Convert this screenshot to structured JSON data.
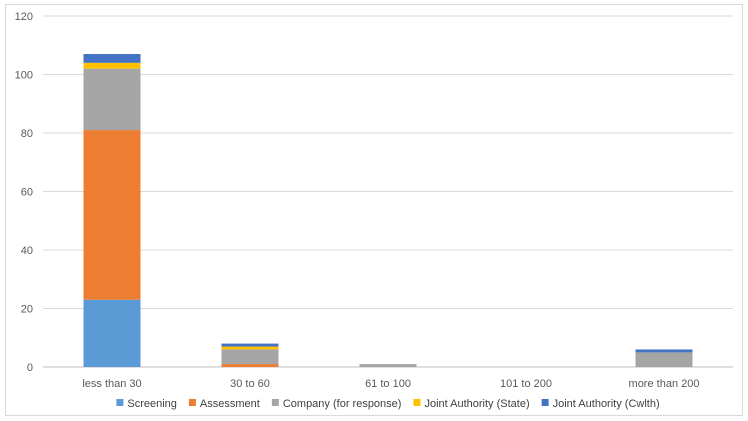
{
  "chart_data": {
    "type": "bar",
    "stacked": true,
    "categories": [
      "less than 30",
      "30 to 60",
      "61 to 100",
      "101 to 200",
      "more than 200"
    ],
    "series": [
      {
        "name": "Screening",
        "color": "#5b9bd5",
        "values": [
          23,
          0,
          0,
          0,
          0
        ]
      },
      {
        "name": "Assessment",
        "color": "#ed7d31",
        "values": [
          58,
          1,
          0,
          0,
          0
        ]
      },
      {
        "name": "Company (for response)",
        "color": "#a5a5a5",
        "values": [
          21,
          5,
          1,
          0,
          5
        ]
      },
      {
        "name": "Joint Authority (State)",
        "color": "#ffc000",
        "values": [
          2,
          1,
          0,
          0,
          0
        ]
      },
      {
        "name": "Joint Authority (Cwlth)",
        "color": "#4472c4",
        "values": [
          3,
          1,
          0,
          0,
          1
        ]
      }
    ],
    "ylim": [
      0,
      120
    ],
    "yticks": [
      0,
      20,
      40,
      60,
      80,
      100,
      120
    ],
    "grid": true,
    "legend": "bottom"
  }
}
